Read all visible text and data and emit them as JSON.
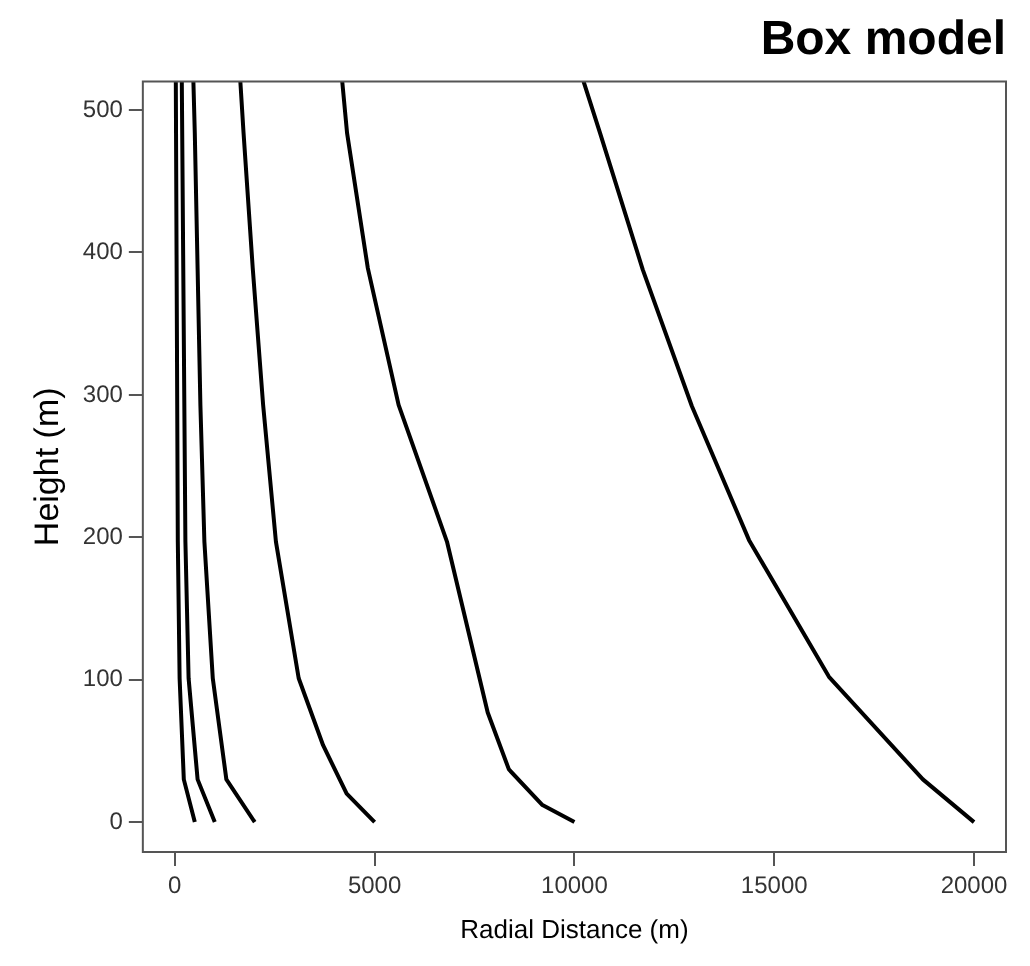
{
  "chart_data": {
    "type": "line",
    "title": "Box model",
    "xlabel": "Radial Distance (m)",
    "ylabel": "Height (m)",
    "xlim": [
      -800,
      20800
    ],
    "ylim": [
      -21,
      520
    ],
    "xticks": [
      0,
      5000,
      10000,
      15000,
      20000
    ],
    "yticks": [
      0,
      100,
      200,
      300,
      400,
      500
    ],
    "grid": false,
    "legend": false,
    "marker": "none",
    "line_style": "solid",
    "series": [
      {
        "color": "#000000",
        "x": [
          500,
          225,
          120,
          75,
          25
        ],
        "values": [
          0,
          30,
          101,
          197,
          520
        ]
      },
      {
        "color": "#000000",
        "x": [
          1000,
          570,
          345,
          265,
          175
        ],
        "values": [
          0,
          30,
          101,
          197,
          520
        ]
      },
      {
        "color": "#000000",
        "x": [
          2000,
          1290,
          950,
          740,
          640,
          570,
          500,
          465
        ],
        "values": [
          0,
          30,
          101,
          197,
          293,
          389,
          484,
          520
        ]
      },
      {
        "color": "#000000",
        "x": [
          5000,
          4300,
          3710,
          3100,
          2530,
          2210,
          1950,
          1720,
          1640
        ],
        "values": [
          0,
          20,
          54,
          101,
          197,
          293,
          389,
          484,
          520
        ]
      },
      {
        "color": "#000000",
        "x": [
          10000,
          9200,
          8360,
          7830,
          6810,
          5600,
          4830,
          4310,
          4190
        ],
        "values": [
          0,
          12,
          37,
          77,
          197,
          293,
          389,
          484,
          520
        ]
      },
      {
        "color": "#000000",
        "x": [
          20000,
          18720,
          16370,
          14370,
          12940,
          11710,
          10640,
          10230
        ],
        "values": [
          0,
          30,
          102,
          198,
          292,
          388,
          484,
          520
        ]
      }
    ]
  }
}
